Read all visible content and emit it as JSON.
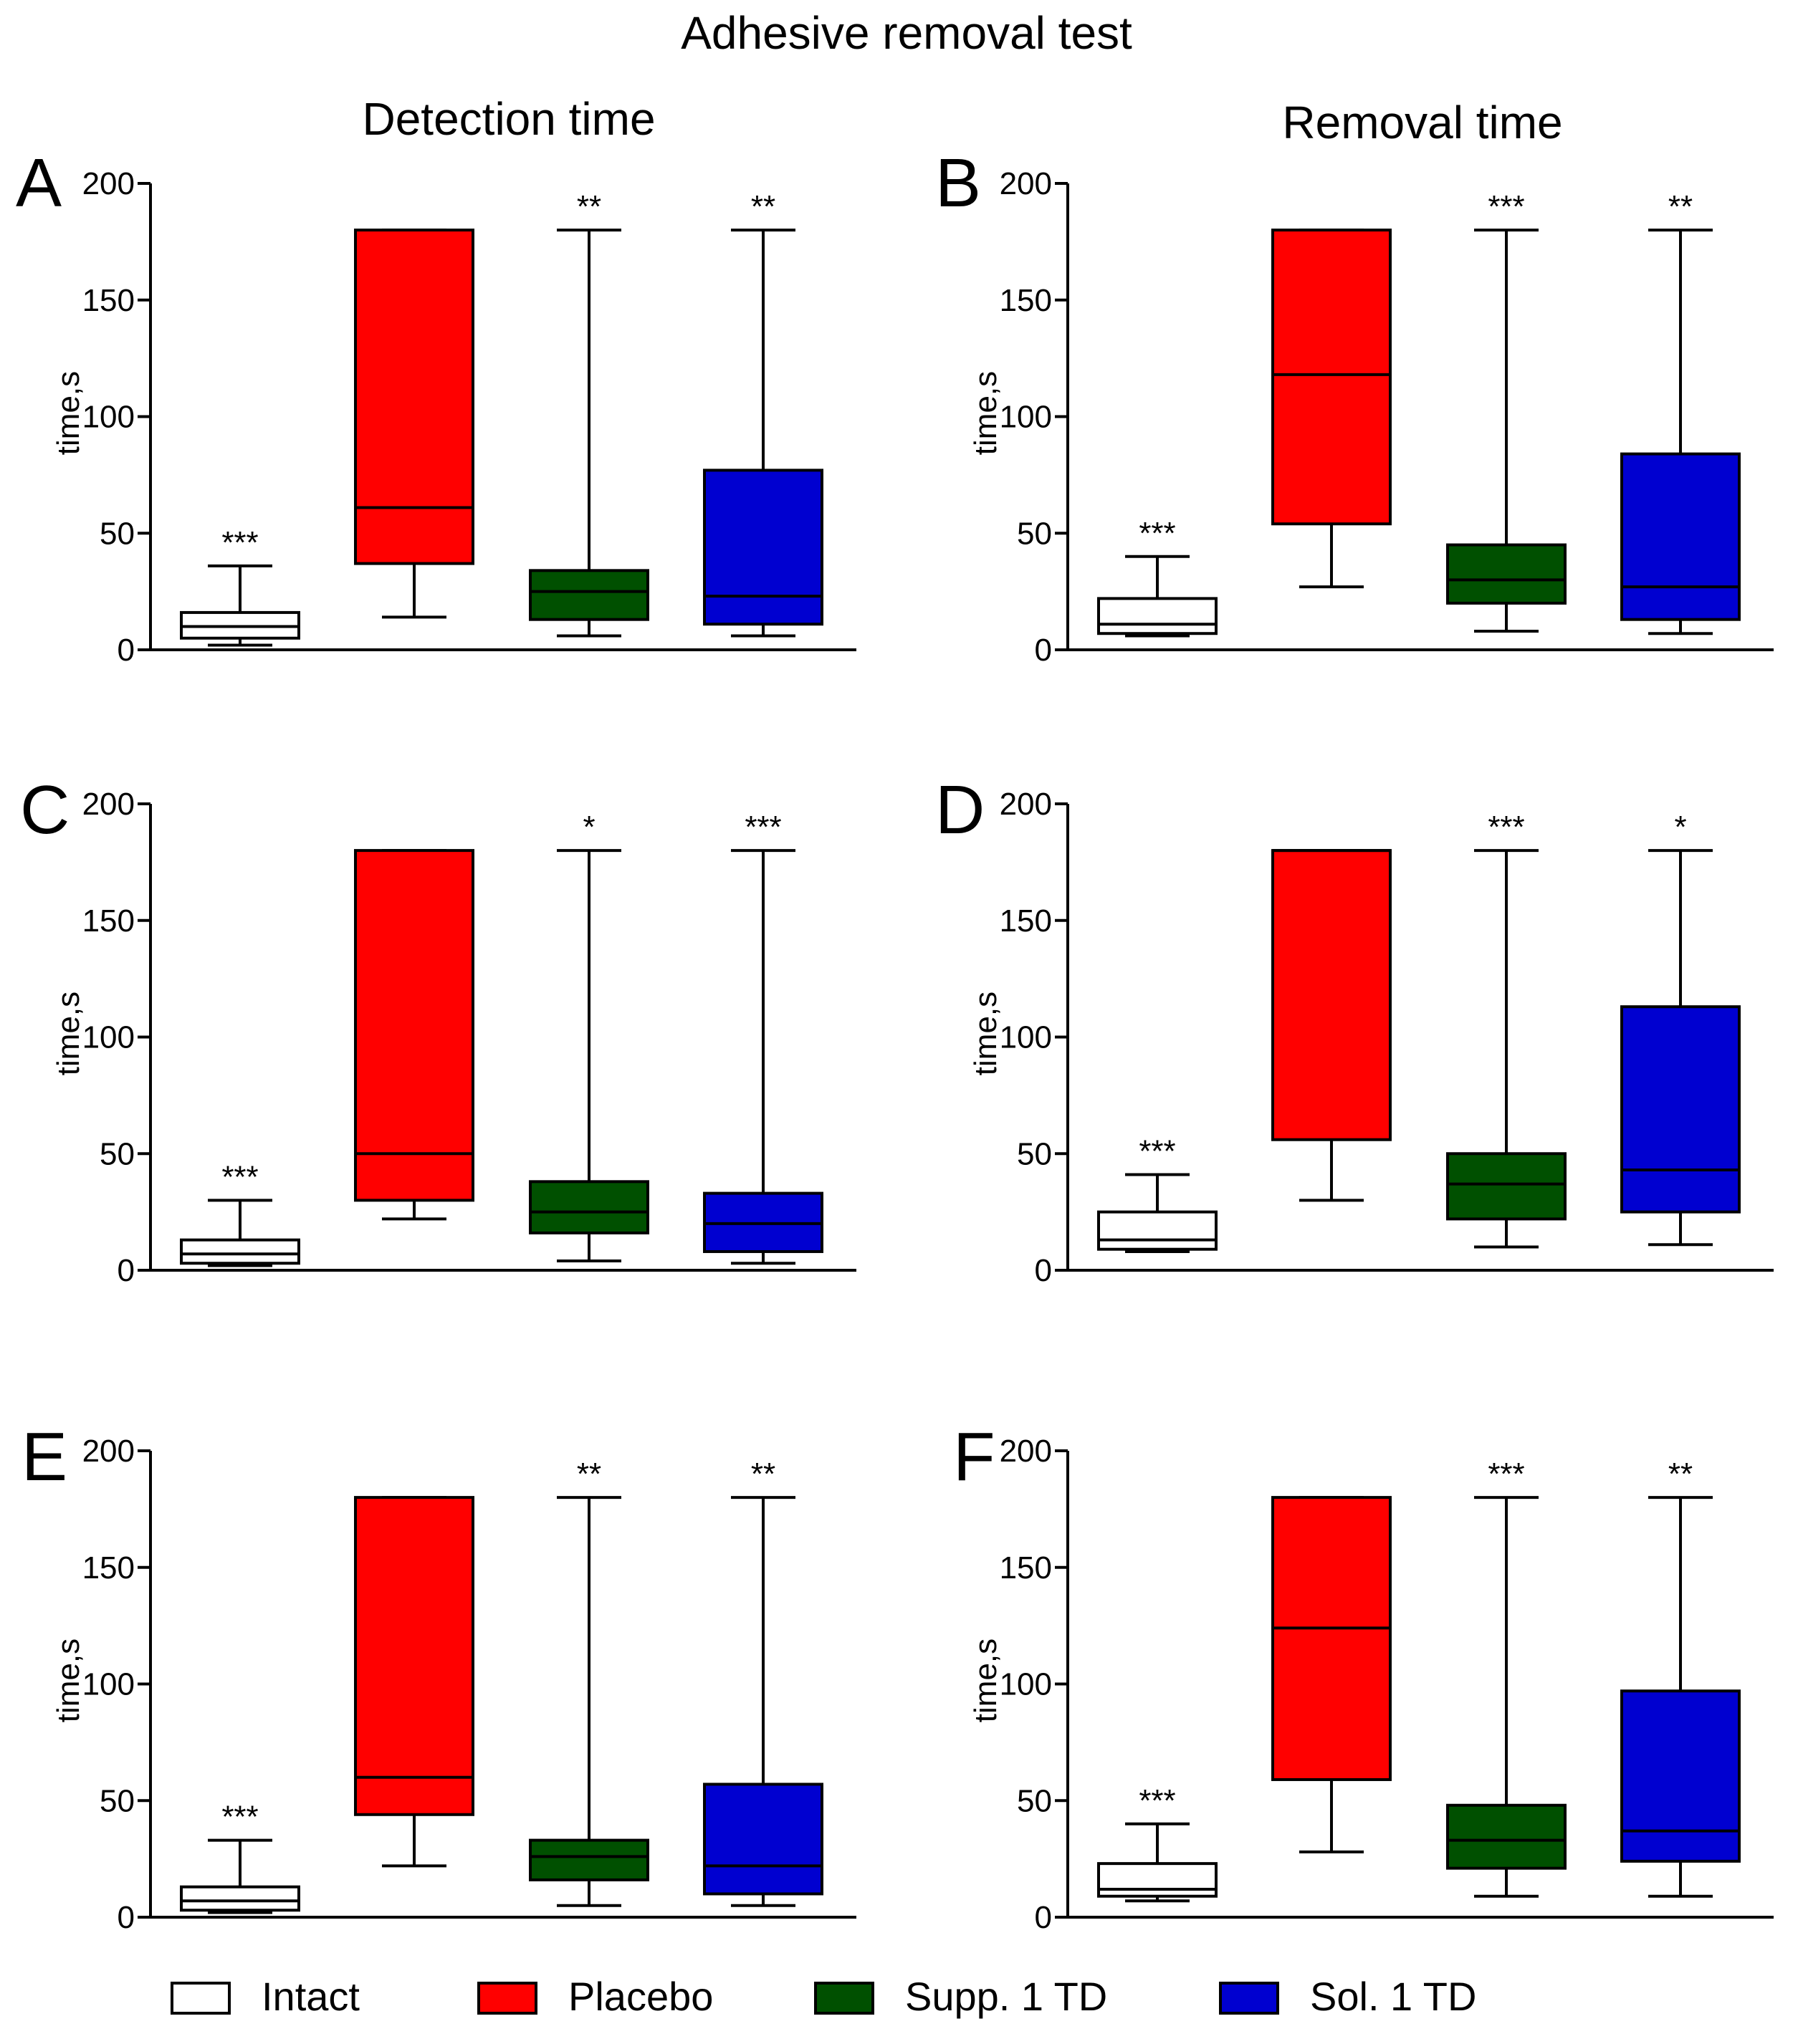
{
  "figure": {
    "title": "Adhesive removal test",
    "column_titles": [
      "Detection time",
      "Removal time"
    ]
  },
  "colors": {
    "Intact": "#ffffff",
    "Placebo": "#ff0000",
    "Supp. 1 TD": "#005000",
    "Sol. 1 TD": "#0000d0"
  },
  "legend": {
    "items": [
      {
        "label": "Intact",
        "color": "#ffffff"
      },
      {
        "label": "Placebo",
        "color": "#ff0000"
      },
      {
        "label": "Supp. 1 TD",
        "color": "#005000"
      },
      {
        "label": "Sol. 1 TD",
        "color": "#0000d0"
      }
    ]
  },
  "chart_data": [
    {
      "panel": "A",
      "type": "boxplot",
      "ylabel": "time,s",
      "ylim": [
        0,
        200
      ],
      "yticks": [
        0,
        50,
        100,
        150,
        200
      ],
      "groups": [
        {
          "name": "Intact",
          "min": 2,
          "q1": 5,
          "median": 10,
          "q3": 16,
          "max": 36,
          "sig": "***"
        },
        {
          "name": "Placebo",
          "min": 14,
          "q1": 37,
          "median": 61,
          "q3": 180,
          "max": 180,
          "sig": ""
        },
        {
          "name": "Supp. 1 TD",
          "min": 6,
          "q1": 13,
          "median": 25,
          "q3": 34,
          "max": 180,
          "sig": "**"
        },
        {
          "name": "Sol. 1 TD",
          "min": 6,
          "q1": 11,
          "median": 23,
          "q3": 77,
          "max": 180,
          "sig": "**"
        }
      ]
    },
    {
      "panel": "B",
      "type": "boxplot",
      "ylabel": "time,s",
      "ylim": [
        0,
        200
      ],
      "yticks": [
        0,
        50,
        100,
        150,
        200
      ],
      "groups": [
        {
          "name": "Intact",
          "min": 6,
          "q1": 7,
          "median": 11,
          "q3": 22,
          "max": 40,
          "sig": "***"
        },
        {
          "name": "Placebo",
          "min": 27,
          "q1": 54,
          "median": 118,
          "q3": 180,
          "max": 180,
          "sig": ""
        },
        {
          "name": "Supp. 1 TD",
          "min": 8,
          "q1": 20,
          "median": 30,
          "q3": 45,
          "max": 180,
          "sig": "***"
        },
        {
          "name": "Sol. 1 TD",
          "min": 7,
          "q1": 13,
          "median": 27,
          "q3": 84,
          "max": 180,
          "sig": "**"
        }
      ]
    },
    {
      "panel": "C",
      "type": "boxplot",
      "ylabel": "time,s",
      "ylim": [
        0,
        200
      ],
      "yticks": [
        0,
        50,
        100,
        150,
        200
      ],
      "groups": [
        {
          "name": "Intact",
          "min": 2,
          "q1": 3,
          "median": 7,
          "q3": 13,
          "max": 30,
          "sig": "***"
        },
        {
          "name": "Placebo",
          "min": 22,
          "q1": 30,
          "median": 50,
          "q3": 180,
          "max": 180,
          "sig": ""
        },
        {
          "name": "Supp. 1 TD",
          "min": 4,
          "q1": 16,
          "median": 25,
          "q3": 38,
          "max": 180,
          "sig": "*"
        },
        {
          "name": "Sol. 1 TD",
          "min": 3,
          "q1": 8,
          "median": 20,
          "q3": 33,
          "max": 180,
          "sig": "***"
        }
      ]
    },
    {
      "panel": "D",
      "type": "boxplot",
      "ylabel": "time,s",
      "ylim": [
        0,
        200
      ],
      "yticks": [
        0,
        50,
        100,
        150,
        200
      ],
      "groups": [
        {
          "name": "Intact",
          "min": 8,
          "q1": 9,
          "median": 13,
          "q3": 25,
          "max": 41,
          "sig": "***"
        },
        {
          "name": "Placebo",
          "min": 30,
          "q1": 56,
          "median": 180,
          "q3": 180,
          "max": 180,
          "sig": ""
        },
        {
          "name": "Supp. 1 TD",
          "min": 10,
          "q1": 22,
          "median": 37,
          "q3": 50,
          "max": 180,
          "sig": "***"
        },
        {
          "name": "Sol. 1 TD",
          "min": 11,
          "q1": 25,
          "median": 43,
          "q3": 113,
          "max": 180,
          "sig": "*"
        }
      ]
    },
    {
      "panel": "E",
      "type": "boxplot",
      "ylabel": "time,s",
      "ylim": [
        0,
        200
      ],
      "yticks": [
        0,
        50,
        100,
        150,
        200
      ],
      "groups": [
        {
          "name": "Intact",
          "min": 2,
          "q1": 3,
          "median": 7,
          "q3": 13,
          "max": 33,
          "sig": "***"
        },
        {
          "name": "Placebo",
          "min": 22,
          "q1": 44,
          "median": 60,
          "q3": 180,
          "max": 180,
          "sig": ""
        },
        {
          "name": "Supp. 1 TD",
          "min": 5,
          "q1": 16,
          "median": 26,
          "q3": 33,
          "max": 180,
          "sig": "**"
        },
        {
          "name": "Sol. 1 TD",
          "min": 5,
          "q1": 10,
          "median": 22,
          "q3": 57,
          "max": 180,
          "sig": "**"
        }
      ]
    },
    {
      "panel": "F",
      "type": "boxplot",
      "ylabel": "time,s",
      "ylim": [
        0,
        200
      ],
      "yticks": [
        0,
        50,
        100,
        150,
        200
      ],
      "groups": [
        {
          "name": "Intact",
          "min": 7,
          "q1": 9,
          "median": 12,
          "q3": 23,
          "max": 40,
          "sig": "***"
        },
        {
          "name": "Placebo",
          "min": 28,
          "q1": 59,
          "median": 124,
          "q3": 180,
          "max": 180,
          "sig": ""
        },
        {
          "name": "Supp. 1 TD",
          "min": 9,
          "q1": 21,
          "median": 33,
          "q3": 48,
          "max": 180,
          "sig": "***"
        },
        {
          "name": "Sol. 1 TD",
          "min": 9,
          "q1": 24,
          "median": 37,
          "q3": 97,
          "max": 180,
          "sig": "**"
        }
      ]
    }
  ]
}
